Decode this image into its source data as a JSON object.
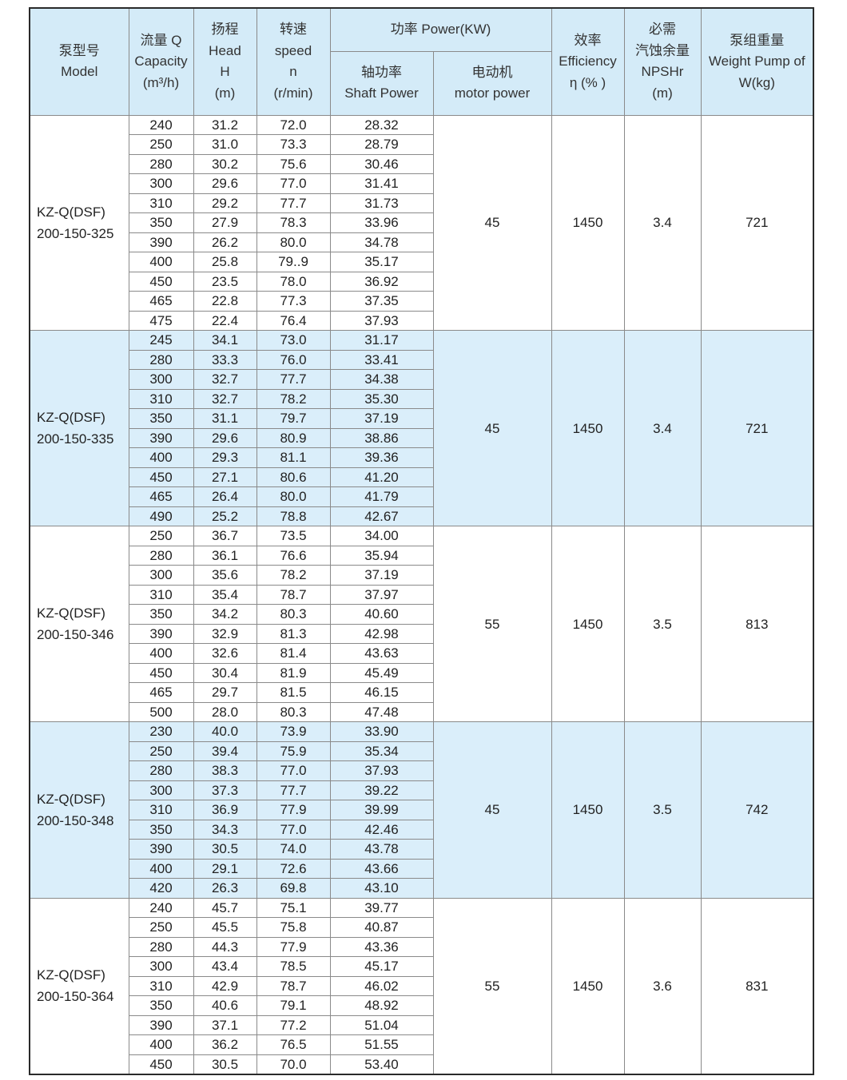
{
  "header": {
    "model": [
      "泵型号",
      "Model"
    ],
    "capacity": [
      "流量 Q",
      "Capacity",
      "(m³/h)"
    ],
    "head": [
      "扬程",
      "Head",
      "H",
      "(m)"
    ],
    "speed": [
      "转速",
      "speed",
      "n",
      "(r/min)"
    ],
    "power": "功率 Power(KW)",
    "shaft": [
      "轴功率",
      "Shaft Power"
    ],
    "motor": [
      "电动机",
      "motor power"
    ],
    "efficiency": [
      "效率",
      "Efficiency",
      "η (% )"
    ],
    "npshr": [
      "必需",
      "汽蚀余量",
      "NPSHr",
      "(m)"
    ],
    "weight": [
      "泵组重量",
      "Weight Pump of",
      "W(kg)"
    ]
  },
  "groups": [
    {
      "model": [
        "KZ-Q(DSF)",
        "200-150-325"
      ],
      "motor": "45",
      "efficiency": "1450",
      "npshr": "3.4",
      "weight": "721",
      "shaded": false,
      "rows": [
        [
          "240",
          "31.2",
          "72.0",
          "28.32"
        ],
        [
          "250",
          "31.0",
          "73.3",
          "28.79"
        ],
        [
          "280",
          "30.2",
          "75.6",
          "30.46"
        ],
        [
          "300",
          "29.6",
          "77.0",
          "31.41"
        ],
        [
          "310",
          "29.2",
          "77.7",
          "31.73"
        ],
        [
          "350",
          "27.9",
          "78.3",
          "33.96"
        ],
        [
          "390",
          "26.2",
          "80.0",
          "34.78"
        ],
        [
          "400",
          "25.8",
          "79..9",
          "35.17"
        ],
        [
          "450",
          "23.5",
          "78.0",
          "36.92"
        ],
        [
          "465",
          "22.8",
          "77.3",
          "37.35"
        ],
        [
          "475",
          "22.4",
          "76.4",
          "37.93"
        ]
      ]
    },
    {
      "model": [
        "KZ-Q(DSF)",
        "200-150-335"
      ],
      "motor": "45",
      "efficiency": "1450",
      "npshr": "3.4",
      "weight": "721",
      "shaded": true,
      "rows": [
        [
          "245",
          "34.1",
          "73.0",
          "31.17"
        ],
        [
          "280",
          "33.3",
          "76.0",
          "33.41"
        ],
        [
          "300",
          "32.7",
          "77.7",
          "34.38"
        ],
        [
          "310",
          "32.7",
          "78.2",
          "35.30"
        ],
        [
          "350",
          "31.1",
          "79.7",
          "37.19"
        ],
        [
          "390",
          "29.6",
          "80.9",
          "38.86"
        ],
        [
          "400",
          "29.3",
          "81.1",
          "39.36"
        ],
        [
          "450",
          "27.1",
          "80.6",
          "41.20"
        ],
        [
          "465",
          "26.4",
          "80.0",
          "41.79"
        ],
        [
          "490",
          "25.2",
          "78.8",
          "42.67"
        ]
      ]
    },
    {
      "model": [
        "KZ-Q(DSF)",
        "200-150-346"
      ],
      "motor": "55",
      "efficiency": "1450",
      "npshr": "3.5",
      "weight": "813",
      "shaded": false,
      "rows": [
        [
          "250",
          "36.7",
          "73.5",
          "34.00"
        ],
        [
          "280",
          "36.1",
          "76.6",
          "35.94"
        ],
        [
          "300",
          "35.6",
          "78.2",
          "37.19"
        ],
        [
          "310",
          "35.4",
          "78.7",
          "37.97"
        ],
        [
          "350",
          "34.2",
          "80.3",
          "40.60"
        ],
        [
          "390",
          "32.9",
          "81.3",
          "42.98"
        ],
        [
          "400",
          "32.6",
          "81.4",
          "43.63"
        ],
        [
          "450",
          "30.4",
          "81.9",
          "45.49"
        ],
        [
          "465",
          "29.7",
          "81.5",
          "46.15"
        ],
        [
          "500",
          "28.0",
          "80.3",
          "47.48"
        ]
      ]
    },
    {
      "model": [
        "KZ-Q(DSF)",
        "200-150-348"
      ],
      "motor": "45",
      "efficiency": "1450",
      "npshr": "3.5",
      "weight": "742",
      "shaded": true,
      "rows": [
        [
          "230",
          "40.0",
          "73.9",
          "33.90"
        ],
        [
          "250",
          "39.4",
          "75.9",
          "35.34"
        ],
        [
          "280",
          "38.3",
          "77.0",
          "37.93"
        ],
        [
          "300",
          "37.3",
          "77.7",
          "39.22"
        ],
        [
          "310",
          "36.9",
          "77.9",
          "39.99"
        ],
        [
          "350",
          "34.3",
          "77.0",
          "42.46"
        ],
        [
          "390",
          "30.5",
          "74.0",
          "43.78"
        ],
        [
          "400",
          "29.1",
          "72.6",
          "43.66"
        ],
        [
          "420",
          "26.3",
          "69.8",
          "43.10"
        ]
      ]
    },
    {
      "model": [
        "KZ-Q(DSF)",
        "200-150-364"
      ],
      "motor": "55",
      "efficiency": "1450",
      "npshr": "3.6",
      "weight": "831",
      "shaded": false,
      "rows": [
        [
          "240",
          "45.7",
          "75.1",
          "39.77"
        ],
        [
          "250",
          "45.5",
          "75.8",
          "40.87"
        ],
        [
          "280",
          "44.3",
          "77.9",
          "43.36"
        ],
        [
          "300",
          "43.4",
          "78.5",
          "45.17"
        ],
        [
          "310",
          "42.9",
          "78.7",
          "46.02"
        ],
        [
          "350",
          "40.6",
          "79.1",
          "48.92"
        ],
        [
          "390",
          "37.1",
          "77.2",
          "51.04"
        ],
        [
          "400",
          "36.2",
          "76.5",
          "51.55"
        ],
        [
          "450",
          "30.5",
          "70.0",
          "53.40"
        ]
      ]
    }
  ]
}
